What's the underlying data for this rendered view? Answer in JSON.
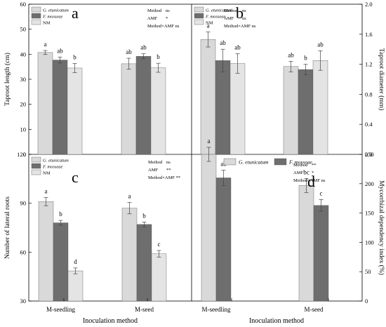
{
  "shared": {
    "x_axis_title": "Inoculation method",
    "categories": [
      "M-seedling",
      "M-seed"
    ],
    "colors": {
      "G. etunicatum": "#d9d9d9",
      "F. mosseae": "#6e6e6e",
      "NM": "#e4e4e4"
    }
  },
  "chart_data": [
    {
      "panel": "a",
      "type": "bar",
      "ylabel": "Taproot length  (cm)",
      "ylim": [
        0,
        60
      ],
      "yticks": [
        "0",
        "10",
        "20",
        "30",
        "40",
        "50",
        "60"
      ],
      "categories": [
        "M-seedling",
        "M-seed"
      ],
      "series": [
        {
          "name": "G. etunicatum",
          "values": [
            40.7,
            36.2
          ],
          "errors": [
            0.8,
            2.2
          ],
          "letters": [
            "a",
            "ab"
          ]
        },
        {
          "name": "F. mosseae",
          "values": [
            37.7,
            39.2
          ],
          "errors": [
            1.2,
            1.0
          ],
          "letters": [
            "ab",
            "ab"
          ]
        },
        {
          "name": "NM",
          "values": [
            34.5,
            34.6
          ],
          "errors": [
            1.8,
            1.8
          ],
          "letters": [
            "b",
            "b"
          ]
        }
      ],
      "stats": [
        {
          "label": "Method",
          "value": "ns"
        },
        {
          "label": "AMF",
          "value": "*"
        },
        {
          "label": "Method×AMF",
          "value": "ns"
        }
      ]
    },
    {
      "panel": "b",
      "type": "bar",
      "ylabel": "Taproot diameter  (mm)",
      "ylim": [
        0,
        2.0
      ],
      "yticks": [
        "0.0",
        "0.4",
        "0.8",
        "1.2",
        "1.6",
        "2.0"
      ],
      "categories": [
        "M-seedling",
        "M-seed"
      ],
      "series": [
        {
          "name": "G. etunicatum",
          "values": [
            1.53,
            1.17
          ],
          "errors": [
            0.1,
            0.07
          ],
          "letters": [
            "a",
            "ab"
          ]
        },
        {
          "name": "F. mosseae",
          "values": [
            1.25,
            1.13
          ],
          "errors": [
            0.15,
            0.07
          ],
          "letters": [
            "ab",
            "b"
          ]
        },
        {
          "name": "NM",
          "values": [
            1.21,
            1.25
          ],
          "errors": [
            0.13,
            0.13
          ],
          "letters": [
            "ab",
            "ab"
          ]
        }
      ],
      "stats": [
        {
          "label": "Method",
          "value": "ns"
        },
        {
          "label": "AMF",
          "value": "ns"
        },
        {
          "label": "Method×AMF",
          "value": "ns"
        }
      ]
    },
    {
      "panel": "c",
      "type": "bar",
      "ylabel": "Number of lateral roots",
      "ylim": [
        30,
        120
      ],
      "yticks": [
        "30",
        "60",
        "90",
        "120"
      ],
      "categories": [
        "M-seedling",
        "M-seed"
      ],
      "series": [
        {
          "name": "G. etunicatum",
          "values": [
            91,
            87
          ],
          "errors": [
            2.5,
            3.5
          ],
          "letters": [
            "a",
            "a"
          ]
        },
        {
          "name": "F. mosseae",
          "values": [
            78,
            77
          ],
          "errors": [
            1.5,
            1.5
          ],
          "letters": [
            "b",
            "b"
          ]
        },
        {
          "name": "NM",
          "values": [
            48.5,
            59
          ],
          "errors": [
            1.8,
            2.0
          ],
          "letters": [
            "d",
            "c"
          ]
        }
      ],
      "stats": [
        {
          "label": "Method",
          "value": "ns"
        },
        {
          "label": "AMF",
          "value": "**"
        },
        {
          "label": "Method×AMF",
          "value": "**"
        }
      ]
    },
    {
      "panel": "d",
      "type": "bar",
      "ylabel": "Mycorrhizal dependency index  (%)",
      "ylim": [
        0,
        250
      ],
      "yticks": [
        "0",
        "50",
        "100",
        "150",
        "200",
        "250"
      ],
      "categories": [
        "M-seedling",
        "M-seed"
      ],
      "series": [
        {
          "name": "G. etunicatum",
          "values": [
            250,
            197
          ],
          "errors": [
            12,
            12
          ],
          "letters": [
            "a",
            "bc"
          ]
        },
        {
          "name": "F. mosseae",
          "values": [
            210,
            163
          ],
          "errors": [
            13,
            10
          ],
          "letters": [
            "ab",
            "c"
          ]
        }
      ],
      "stats": [
        {
          "label": "Method",
          "value": "**"
        },
        {
          "label": "AMF",
          "value": "*"
        },
        {
          "label": "Method×AMF",
          "value": "ns"
        }
      ]
    }
  ]
}
